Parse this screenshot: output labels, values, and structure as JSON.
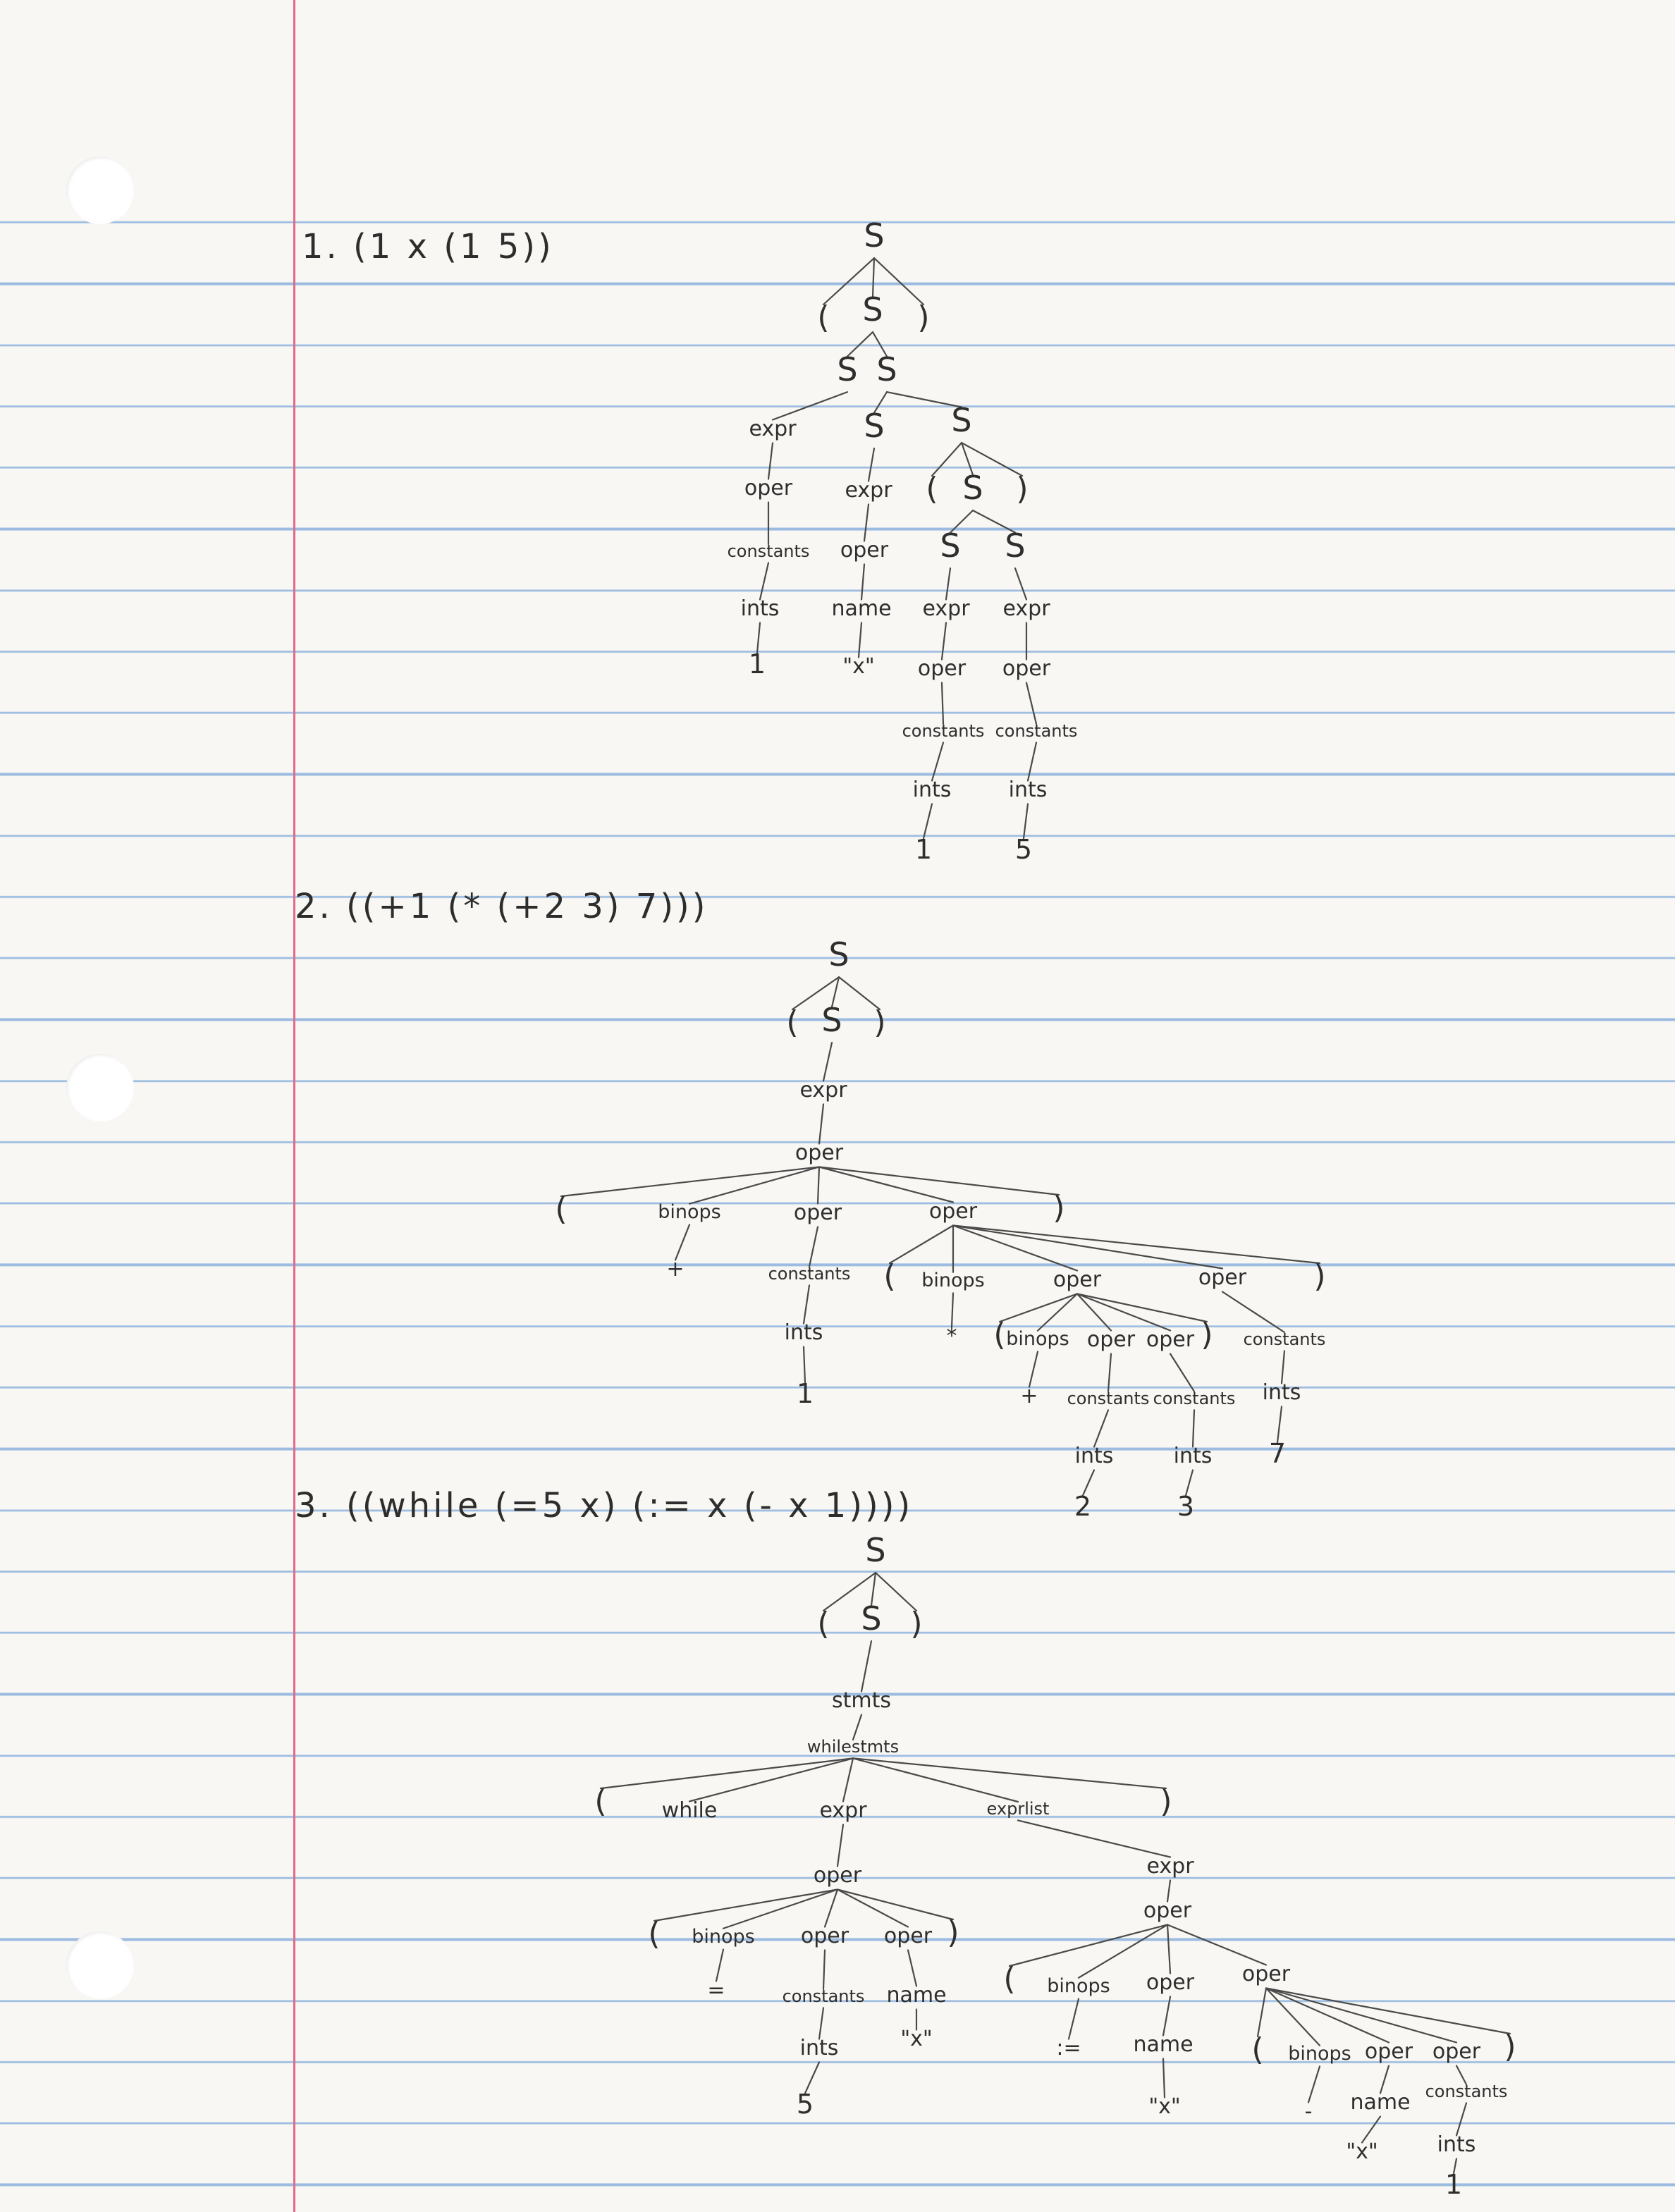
{
  "problems": [
    {
      "label": "1. (1 x (1 5))"
    },
    {
      "label": "2. ((+1 (* (+2 3) 7)))"
    },
    {
      "label": "3. ((while (=5 x) (:= x (- x 1))))"
    }
  ],
  "trees": [
    {
      "id": "tree1",
      "nodes": [
        {
          "id": "t1_S",
          "text": "S"
        },
        {
          "id": "t1_lp",
          "text": "("
        },
        {
          "id": "t1_S2",
          "text": "S"
        },
        {
          "id": "t1_rp",
          "text": ")"
        },
        {
          "id": "t1_Sa",
          "text": "S"
        },
        {
          "id": "t1_Sb",
          "text": "S"
        },
        {
          "id": "t1_expr1",
          "text": "expr"
        },
        {
          "id": "t1_S3",
          "text": "S"
        },
        {
          "id": "t1_S4",
          "text": "S"
        },
        {
          "id": "t1_oper1",
          "text": "oper"
        },
        {
          "id": "t1_expr2",
          "text": "expr"
        },
        {
          "id": "t1_lp2",
          "text": "("
        },
        {
          "id": "t1_S5",
          "text": "S"
        },
        {
          "id": "t1_rp2",
          "text": ")"
        },
        {
          "id": "t1_const1",
          "text": "constants"
        },
        {
          "id": "t1_oper2",
          "text": "oper"
        },
        {
          "id": "t1_S6",
          "text": "S"
        },
        {
          "id": "t1_S7",
          "text": "S"
        },
        {
          "id": "t1_ints1",
          "text": "ints"
        },
        {
          "id": "t1_name1",
          "text": "name"
        },
        {
          "id": "t1_expr3",
          "text": "expr"
        },
        {
          "id": "t1_expr4",
          "text": "expr"
        },
        {
          "id": "t1_one",
          "text": "1"
        },
        {
          "id": "t1_x",
          "text": "\"x\""
        },
        {
          "id": "t1_oper3",
          "text": "oper"
        },
        {
          "id": "t1_oper4",
          "text": "oper"
        },
        {
          "id": "t1_const2",
          "text": "constants"
        },
        {
          "id": "t1_const3",
          "text": "constants"
        },
        {
          "id": "t1_ints2",
          "text": "ints"
        },
        {
          "id": "t1_ints3",
          "text": "ints"
        },
        {
          "id": "t1_one2",
          "text": "1"
        },
        {
          "id": "t1_five",
          "text": "5"
        }
      ],
      "edges": [
        [
          "t1_S",
          "t1_lp"
        ],
        [
          "t1_S",
          "t1_S2"
        ],
        [
          "t1_S",
          "t1_rp"
        ],
        [
          "t1_S2",
          "t1_Sa"
        ],
        [
          "t1_S2",
          "t1_Sb"
        ],
        [
          "t1_Sa",
          "t1_expr1"
        ],
        [
          "t1_Sb",
          "t1_S3"
        ],
        [
          "t1_Sb",
          "t1_S4"
        ],
        [
          "t1_expr1",
          "t1_oper1"
        ],
        [
          "t1_S3",
          "t1_expr2"
        ],
        [
          "t1_S4",
          "t1_lp2"
        ],
        [
          "t1_S4",
          "t1_S5"
        ],
        [
          "t1_S4",
          "t1_rp2"
        ],
        [
          "t1_oper1",
          "t1_const1"
        ],
        [
          "t1_expr2",
          "t1_oper2"
        ],
        [
          "t1_S5",
          "t1_S6"
        ],
        [
          "t1_S5",
          "t1_S7"
        ],
        [
          "t1_const1",
          "t1_ints1"
        ],
        [
          "t1_oper2",
          "t1_name1"
        ],
        [
          "t1_S6",
          "t1_expr3"
        ],
        [
          "t1_S7",
          "t1_expr4"
        ],
        [
          "t1_ints1",
          "t1_one"
        ],
        [
          "t1_name1",
          "t1_x"
        ],
        [
          "t1_expr3",
          "t1_oper3"
        ],
        [
          "t1_expr4",
          "t1_oper4"
        ],
        [
          "t1_oper3",
          "t1_const2"
        ],
        [
          "t1_oper4",
          "t1_const3"
        ],
        [
          "t1_const2",
          "t1_ints2"
        ],
        [
          "t1_const3",
          "t1_ints3"
        ],
        [
          "t1_ints2",
          "t1_one2"
        ],
        [
          "t1_ints3",
          "t1_five"
        ]
      ]
    },
    {
      "id": "tree2",
      "nodes": [
        {
          "id": "t2_S",
          "text": "S"
        },
        {
          "id": "t2_lp",
          "text": "("
        },
        {
          "id": "t2_S2",
          "text": "S"
        },
        {
          "id": "t2_rp",
          "text": ")"
        },
        {
          "id": "t2_expr",
          "text": "expr"
        },
        {
          "id": "t2_oper",
          "text": "oper"
        },
        {
          "id": "t2_lp2",
          "text": "("
        },
        {
          "id": "t2_binops",
          "text": "binops"
        },
        {
          "id": "t2_oper1",
          "text": "oper"
        },
        {
          "id": "t2_oper2",
          "text": "oper"
        },
        {
          "id": "t2_rp2",
          "text": ")"
        },
        {
          "id": "t2_plus",
          "text": "+"
        },
        {
          "id": "t2_const1",
          "text": "constants"
        },
        {
          "id": "t2_lp3",
          "text": "("
        },
        {
          "id": "t2_binops2",
          "text": "binops"
        },
        {
          "id": "t2_oper3",
          "text": "oper"
        },
        {
          "id": "t2_oper4",
          "text": "oper"
        },
        {
          "id": "t2_rp3",
          "text": ")"
        },
        {
          "id": "t2_ints1",
          "text": "ints"
        },
        {
          "id": "t2_star",
          "text": "*"
        },
        {
          "id": "t2_lp4",
          "text": "("
        },
        {
          "id": "t2_binops3",
          "text": "binops"
        },
        {
          "id": "t2_oper5",
          "text": "oper"
        },
        {
          "id": "t2_oper6",
          "text": "oper"
        },
        {
          "id": "t2_rp4",
          "text": ")"
        },
        {
          "id": "t2_const4",
          "text": "constants"
        },
        {
          "id": "t2_one",
          "text": "1"
        },
        {
          "id": "t2_plus2",
          "text": "+"
        },
        {
          "id": "t2_const2",
          "text": "constants"
        },
        {
          "id": "t2_const3",
          "text": "constants"
        },
        {
          "id": "t2_ints4",
          "text": "ints"
        },
        {
          "id": "t2_ints2",
          "text": "ints"
        },
        {
          "id": "t2_ints3",
          "text": "ints"
        },
        {
          "id": "t2_seven",
          "text": "7"
        },
        {
          "id": "t2_two",
          "text": "2"
        },
        {
          "id": "t2_three",
          "text": "3"
        }
      ],
      "edges": [
        [
          "t2_S",
          "t2_lp"
        ],
        [
          "t2_S",
          "t2_S2"
        ],
        [
          "t2_S",
          "t2_rp"
        ],
        [
          "t2_S2",
          "t2_expr"
        ],
        [
          "t2_expr",
          "t2_oper"
        ],
        [
          "t2_oper",
          "t2_lp2"
        ],
        [
          "t2_oper",
          "t2_binops"
        ],
        [
          "t2_oper",
          "t2_oper1"
        ],
        [
          "t2_oper",
          "t2_oper2"
        ],
        [
          "t2_oper",
          "t2_rp2"
        ],
        [
          "t2_binops",
          "t2_plus"
        ],
        [
          "t2_oper1",
          "t2_const1"
        ],
        [
          "t2_oper2",
          "t2_lp3"
        ],
        [
          "t2_oper2",
          "t2_binops2"
        ],
        [
          "t2_oper2",
          "t2_oper3"
        ],
        [
          "t2_oper2",
          "t2_oper4"
        ],
        [
          "t2_oper2",
          "t2_rp3"
        ],
        [
          "t2_const1",
          "t2_ints1"
        ],
        [
          "t2_binops2",
          "t2_star"
        ],
        [
          "t2_oper3",
          "t2_lp4"
        ],
        [
          "t2_oper3",
          "t2_binops3"
        ],
        [
          "t2_oper3",
          "t2_oper5"
        ],
        [
          "t2_oper3",
          "t2_oper6"
        ],
        [
          "t2_oper3",
          "t2_rp4"
        ],
        [
          "t2_oper4",
          "t2_const4"
        ],
        [
          "t2_ints1",
          "t2_one"
        ],
        [
          "t2_binops3",
          "t2_plus2"
        ],
        [
          "t2_oper5",
          "t2_const2"
        ],
        [
          "t2_oper6",
          "t2_const3"
        ],
        [
          "t2_const4",
          "t2_ints4"
        ],
        [
          "t2_const2",
          "t2_ints2"
        ],
        [
          "t2_const3",
          "t2_ints3"
        ],
        [
          "t2_ints4",
          "t2_seven"
        ],
        [
          "t2_ints2",
          "t2_two"
        ],
        [
          "t2_ints3",
          "t2_three"
        ]
      ]
    },
    {
      "id": "tree3",
      "nodes": [
        {
          "id": "t3_S",
          "text": "S"
        },
        {
          "id": "t3_lp",
          "text": "("
        },
        {
          "id": "t3_S2",
          "text": "S"
        },
        {
          "id": "t3_rp",
          "text": ")"
        },
        {
          "id": "t3_stmts",
          "text": "stmts"
        },
        {
          "id": "t3_while",
          "text": "whilestmts"
        },
        {
          "id": "t3_lp2",
          "text": "("
        },
        {
          "id": "t3_kw",
          "text": "while"
        },
        {
          "id": "t3_expr",
          "text": "expr"
        },
        {
          "id": "t3_exprlist",
          "text": "exprlist"
        },
        {
          "id": "t3_rp2",
          "text": ")"
        },
        {
          "id": "t3_oper",
          "text": "oper"
        },
        {
          "id": "t3_expr2",
          "text": "expr"
        },
        {
          "id": "t3_lp3",
          "text": "("
        },
        {
          "id": "t3_binops",
          "text": "binops"
        },
        {
          "id": "t3_oper1",
          "text": "oper"
        },
        {
          "id": "t3_oper2",
          "text": "oper"
        },
        {
          "id": "t3_rp3",
          "text": ")"
        },
        {
          "id": "t3_oper3",
          "text": "oper"
        },
        {
          "id": "t3_eq",
          "text": "="
        },
        {
          "id": "t3_const1",
          "text": "constants"
        },
        {
          "id": "t3_name1",
          "text": "name"
        },
        {
          "id": "t3_lp4",
          "text": "("
        },
        {
          "id": "t3_binops2",
          "text": "binops"
        },
        {
          "id": "t3_oper4",
          "text": "oper"
        },
        {
          "id": "t3_oper5",
          "text": "oper"
        },
        {
          "id": "t3_ints1",
          "text": "ints"
        },
        {
          "id": "t3_x1",
          "text": "\"x\""
        },
        {
          "id": "t3_assign",
          "text": ":="
        },
        {
          "id": "t3_name2",
          "text": "name"
        },
        {
          "id": "t3_lp5",
          "text": "("
        },
        {
          "id": "t3_binops3",
          "text": "binops"
        },
        {
          "id": "t3_oper6",
          "text": "oper"
        },
        {
          "id": "t3_oper7",
          "text": "oper"
        },
        {
          "id": "t3_rp5",
          "text": ")"
        },
        {
          "id": "t3_five",
          "text": "5"
        },
        {
          "id": "t3_x2",
          "text": "\"x\""
        },
        {
          "id": "t3_minus",
          "text": "-"
        },
        {
          "id": "t3_name3",
          "text": "name"
        },
        {
          "id": "t3_const2",
          "text": "constants"
        },
        {
          "id": "t3_x3",
          "text": "\"x\""
        },
        {
          "id": "t3_ints2",
          "text": "ints"
        },
        {
          "id": "t3_one",
          "text": "1"
        }
      ],
      "edges": [
        [
          "t3_S",
          "t3_lp"
        ],
        [
          "t3_S",
          "t3_S2"
        ],
        [
          "t3_S",
          "t3_rp"
        ],
        [
          "t3_S2",
          "t3_stmts"
        ],
        [
          "t3_stmts",
          "t3_while"
        ],
        [
          "t3_while",
          "t3_lp2"
        ],
        [
          "t3_while",
          "t3_kw"
        ],
        [
          "t3_while",
          "t3_expr"
        ],
        [
          "t3_while",
          "t3_exprlist"
        ],
        [
          "t3_while",
          "t3_rp2"
        ],
        [
          "t3_expr",
          "t3_oper"
        ],
        [
          "t3_exprlist",
          "t3_expr2"
        ],
        [
          "t3_oper",
          "t3_lp3"
        ],
        [
          "t3_oper",
          "t3_binops"
        ],
        [
          "t3_oper",
          "t3_oper1"
        ],
        [
          "t3_oper",
          "t3_oper2"
        ],
        [
          "t3_oper",
          "t3_rp3"
        ],
        [
          "t3_expr2",
          "t3_oper3"
        ],
        [
          "t3_binops",
          "t3_eq"
        ],
        [
          "t3_oper1",
          "t3_const1"
        ],
        [
          "t3_oper2",
          "t3_name1"
        ],
        [
          "t3_oper3",
          "t3_lp4"
        ],
        [
          "t3_oper3",
          "t3_binops2"
        ],
        [
          "t3_oper3",
          "t3_oper4"
        ],
        [
          "t3_oper3",
          "t3_oper5"
        ],
        [
          "t3_const1",
          "t3_ints1"
        ],
        [
          "t3_name1",
          "t3_x1"
        ],
        [
          "t3_binops2",
          "t3_assign"
        ],
        [
          "t3_oper4",
          "t3_name2"
        ],
        [
          "t3_oper5",
          "t3_lp5"
        ],
        [
          "t3_oper5",
          "t3_binops3"
        ],
        [
          "t3_oper5",
          "t3_oper6"
        ],
        [
          "t3_oper5",
          "t3_oper7"
        ],
        [
          "t3_oper5",
          "t3_rp5"
        ],
        [
          "t3_ints1",
          "t3_five"
        ],
        [
          "t3_name2",
          "t3_x2"
        ],
        [
          "t3_binops3",
          "t3_minus"
        ],
        [
          "t3_oper6",
          "t3_name3"
        ],
        [
          "t3_oper7",
          "t3_const2"
        ],
        [
          "t3_name3",
          "t3_x3"
        ],
        [
          "t3_const2",
          "t3_ints2"
        ],
        [
          "t3_ints2",
          "t3_one"
        ]
      ]
    }
  ]
}
